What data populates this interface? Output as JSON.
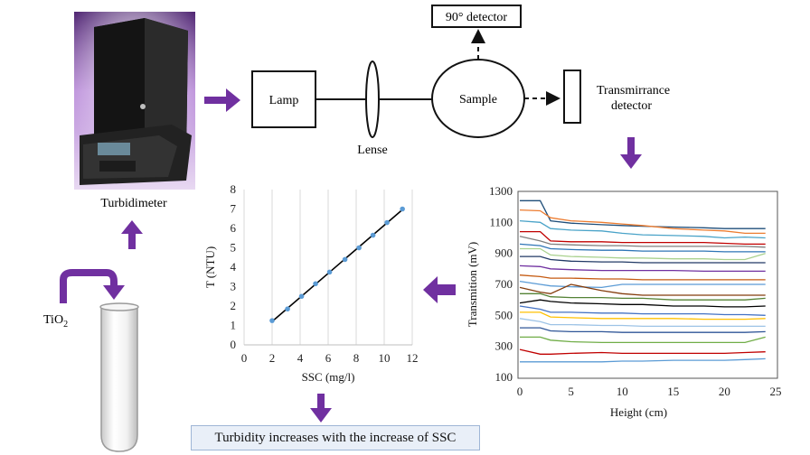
{
  "colors": {
    "arrow": "#7030a0",
    "caption_bg": "#e9eff8",
    "caption_border": "#9fb6d6",
    "device_body": "#1a1a1a",
    "device_bg": "#b07ad0"
  },
  "labels": {
    "turbidimeter": "Turbidimeter",
    "lamp": "Lamp",
    "lense": "Lense",
    "sample": "Sample",
    "detector90": "90° detector",
    "transmittance_line1": "Transmirrance",
    "transmittance_line2": "detector",
    "tio2": "TiO",
    "tio2_sub": "2",
    "caption": "Turbidity increases with the increase of SSC"
  },
  "icons": {
    "device": "turbidimeter-device-image",
    "tube": "test-tube-icon",
    "arrows": "purple-block-arrow-icon"
  },
  "chart_data": [
    {
      "type": "scatter",
      "title": "",
      "xlabel": "SSC (mg/l)",
      "ylabel": "T (NTU)",
      "xlim": [
        0,
        12
      ],
      "ylim": [
        0,
        8
      ],
      "xticks": [
        0,
        2,
        4,
        6,
        8,
        10,
        12
      ],
      "yticks": [
        0,
        1,
        2,
        3,
        4,
        5,
        6,
        7,
        8
      ],
      "grid": "vertical",
      "trendline": "linear",
      "x": [
        2.0,
        3.1,
        4.1,
        5.1,
        6.1,
        7.2,
        8.2,
        9.2,
        10.2,
        11.3
      ],
      "y": [
        1.25,
        1.85,
        2.5,
        3.15,
        3.75,
        4.4,
        5.0,
        5.65,
        6.3,
        7.0
      ]
    },
    {
      "type": "line",
      "title": "",
      "xlabel": "Height (cm)",
      "ylabel": "Transmition (mV)",
      "xlim": [
        0,
        25
      ],
      "ylim": [
        100,
        1300
      ],
      "xticks": [
        0,
        5,
        10,
        15,
        20,
        25
      ],
      "yticks": [
        100,
        300,
        500,
        700,
        900,
        1100,
        1300
      ],
      "grid": "none",
      "x": [
        0,
        2,
        3,
        5,
        8,
        10,
        12,
        15,
        18,
        20,
        22,
        24
      ],
      "series": [
        {
          "name": "s1",
          "color": "#1f4e79",
          "values": [
            1240,
            1240,
            1110,
            1095,
            1085,
            1080,
            1075,
            1070,
            1065,
            1060,
            1060,
            1060
          ]
        },
        {
          "name": "s2",
          "color": "#ed7d31",
          "values": [
            1180,
            1175,
            1130,
            1110,
            1100,
            1090,
            1080,
            1060,
            1050,
            1045,
            1030,
            1030
          ]
        },
        {
          "name": "s3",
          "color": "#4aa3c8",
          "values": [
            1110,
            1100,
            1060,
            1050,
            1045,
            1030,
            1020,
            1015,
            1010,
            1000,
            1005,
            1000
          ]
        },
        {
          "name": "s4",
          "color": "#c00000",
          "values": [
            1040,
            1040,
            980,
            975,
            975,
            970,
            970,
            970,
            970,
            965,
            960,
            960
          ]
        },
        {
          "name": "s5",
          "color": "#7f7f7f",
          "values": [
            1010,
            980,
            960,
            955,
            950,
            950,
            945,
            945,
            945,
            945,
            945,
            940
          ]
        },
        {
          "name": "s6",
          "color": "#2e75b6",
          "values": [
            960,
            950,
            930,
            925,
            920,
            920,
            915,
            915,
            915,
            910,
            910,
            910
          ]
        },
        {
          "name": "s7",
          "color": "#a9d18e",
          "values": [
            930,
            930,
            890,
            880,
            875,
            870,
            870,
            865,
            865,
            860,
            860,
            900
          ]
        },
        {
          "name": "s8",
          "color": "#203864",
          "values": [
            880,
            880,
            860,
            850,
            845,
            845,
            840,
            840,
            840,
            840,
            840,
            840
          ]
        },
        {
          "name": "s9",
          "color": "#7030a0",
          "values": [
            820,
            815,
            800,
            795,
            790,
            790,
            790,
            790,
            785,
            785,
            785,
            785
          ]
        },
        {
          "name": "s10",
          "color": "#c55a11",
          "values": [
            760,
            750,
            740,
            740,
            735,
            735,
            730,
            730,
            730,
            730,
            730,
            730
          ]
        },
        {
          "name": "s11",
          "color": "#5b9bd5",
          "values": [
            720,
            700,
            690,
            685,
            680,
            700,
            700,
            700,
            700,
            700,
            700,
            700
          ]
        },
        {
          "name": "s12",
          "color": "#843c0c",
          "values": [
            680,
            650,
            640,
            700,
            660,
            640,
            630,
            630,
            630,
            630,
            630,
            630
          ]
        },
        {
          "name": "s13",
          "color": "#548235",
          "values": [
            640,
            640,
            620,
            615,
            615,
            610,
            610,
            600,
            600,
            600,
            600,
            610
          ]
        },
        {
          "name": "s14",
          "color": "#000000",
          "values": [
            580,
            600,
            590,
            580,
            575,
            570,
            570,
            560,
            560,
            555,
            555,
            560
          ]
        },
        {
          "name": "s15",
          "color": "#4472c4",
          "values": [
            560,
            540,
            520,
            520,
            515,
            515,
            510,
            510,
            510,
            505,
            505,
            500
          ]
        },
        {
          "name": "s16",
          "color": "#ffc000",
          "values": [
            520,
            520,
            490,
            485,
            480,
            480,
            480,
            480,
            475,
            475,
            475,
            480
          ]
        },
        {
          "name": "s17",
          "color": "#9dc3e6",
          "values": [
            480,
            460,
            440,
            440,
            435,
            435,
            430,
            430,
            430,
            430,
            430,
            430
          ]
        },
        {
          "name": "s18",
          "color": "#2f5597",
          "values": [
            420,
            420,
            400,
            395,
            395,
            390,
            390,
            390,
            390,
            390,
            390,
            395
          ]
        },
        {
          "name": "s19",
          "color": "#70ad47",
          "values": [
            360,
            360,
            340,
            330,
            325,
            325,
            325,
            325,
            325,
            325,
            325,
            360
          ]
        },
        {
          "name": "s20",
          "color": "#c00000",
          "values": [
            280,
            250,
            250,
            255,
            260,
            255,
            255,
            255,
            255,
            255,
            260,
            265
          ]
        },
        {
          "name": "s21",
          "color": "#5b9bd5",
          "values": [
            200,
            200,
            200,
            200,
            200,
            205,
            205,
            210,
            210,
            210,
            215,
            220
          ]
        }
      ]
    }
  ]
}
